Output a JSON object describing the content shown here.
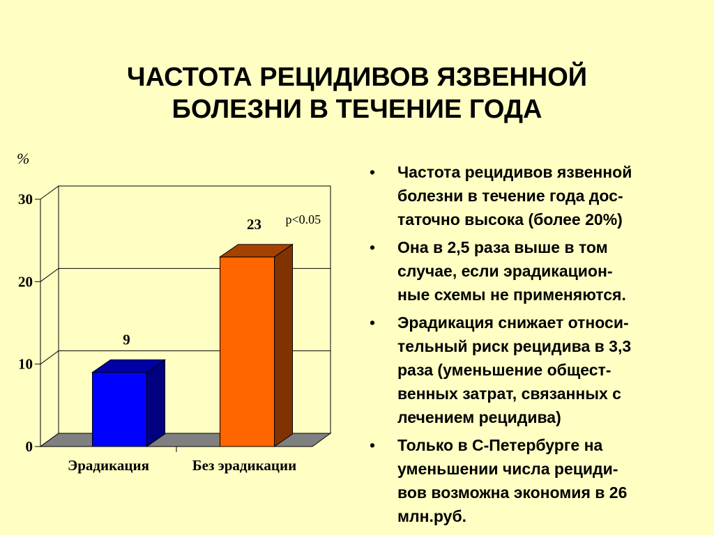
{
  "title": {
    "lines": [
      "ЧАСТОТА РЕЦИДИВОВ ЯЗВЕННОЙ",
      "БОЛЕЗНИ В ТЕЧЕНИЕ ГОДА"
    ]
  },
  "chart_data": {
    "type": "bar",
    "style": "3d",
    "ylabel": "%",
    "ylim": [
      0,
      30
    ],
    "yticks": [
      "0",
      "10",
      "20",
      "30"
    ],
    "grid": true,
    "categories": [
      "Эрадикация",
      "Без эрадикации"
    ],
    "values": [
      9,
      23
    ],
    "value_labels": [
      "9",
      "23"
    ],
    "bar_colors": [
      "#0000FF",
      "#FF6600"
    ],
    "annotation": "p<0.05",
    "floor_color": "#808080"
  },
  "bullets": {
    "marker": "•",
    "items": [
      [
        "Частота рецидивов язвенной",
        "болезни в течение года дос-",
        "таточно высока (более 20%)"
      ],
      [
        "Она в 2,5 раза выше в том",
        "случае, если эрадикацион-",
        "ные схемы не применяются."
      ],
      [
        "Эрадикация снижает относи-",
        "тельный риск рецидива в 3,3",
        "раза (уменьшение общест-",
        "венных затрат, связанных с",
        "лечением рецидива)"
      ],
      [
        "Только в С-Петербурге на",
        "уменьшении числа рециди-",
        "вов возможна экономия в 26",
        "млн.руб."
      ]
    ]
  }
}
